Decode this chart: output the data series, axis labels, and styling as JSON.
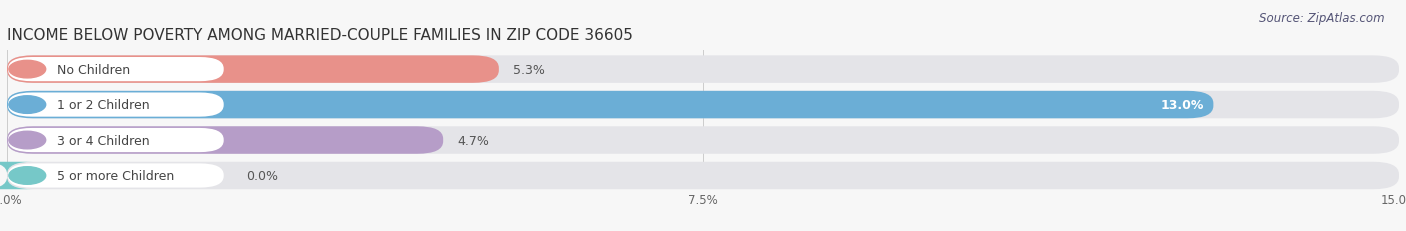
{
  "title": "INCOME BELOW POVERTY AMONG MARRIED-COUPLE FAMILIES IN ZIP CODE 36605",
  "source": "Source: ZipAtlas.com",
  "categories": [
    "No Children",
    "1 or 2 Children",
    "3 or 4 Children",
    "5 or more Children"
  ],
  "values": [
    5.3,
    13.0,
    4.7,
    0.0
  ],
  "bar_colors": [
    "#e8918a",
    "#6baed6",
    "#b69dc8",
    "#76c8c8"
  ],
  "background_color": "#f7f7f7",
  "bar_bg_color": "#e4e4e8",
  "xlim": [
    0,
    15.0
  ],
  "xticks": [
    0.0,
    7.5,
    15.0
  ],
  "xticklabels": [
    "0.0%",
    "7.5%",
    "15.0%"
  ],
  "title_fontsize": 11,
  "label_fontsize": 9,
  "value_fontsize": 9,
  "source_fontsize": 8.5
}
